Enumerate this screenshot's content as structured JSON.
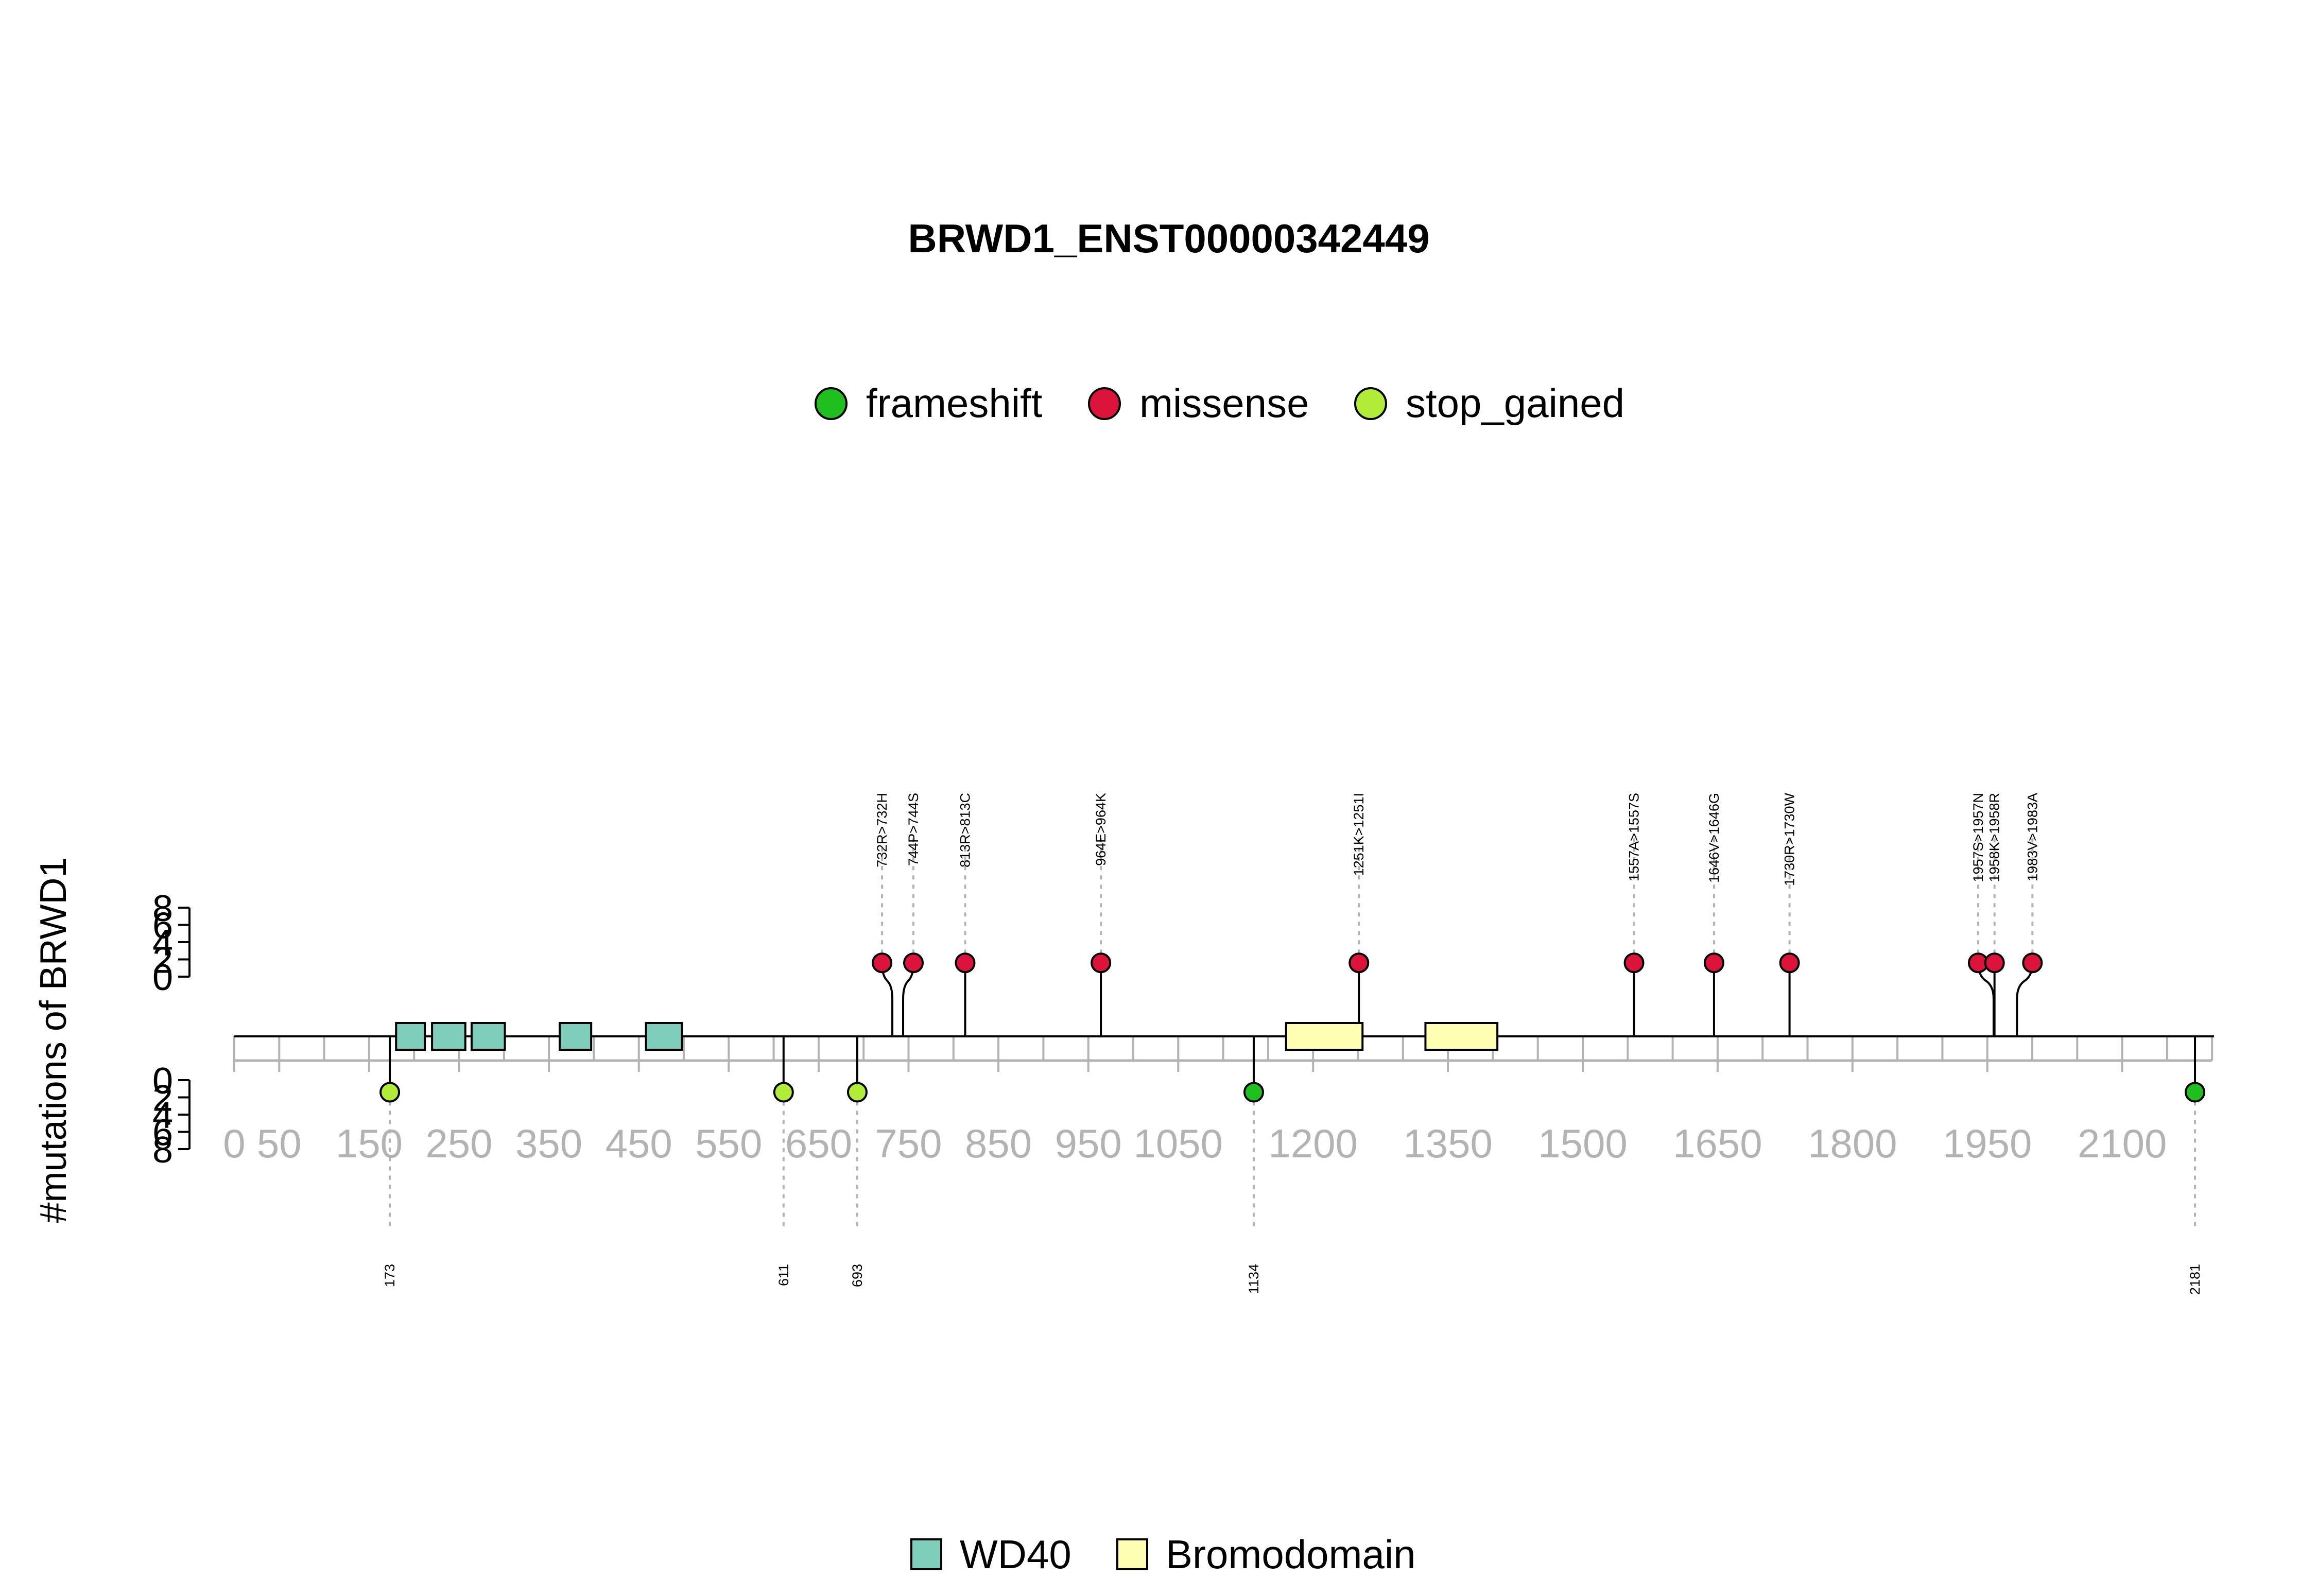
{
  "chart_data": {
    "type": "lollipop",
    "title": "BRWD1_ENST00000342449",
    "ylabel": "#mutations of BRWD1",
    "xlim": [
      0,
      2200
    ],
    "x_ticks": [
      0,
      50,
      150,
      250,
      350,
      450,
      550,
      650,
      750,
      850,
      950,
      1050,
      1200,
      1350,
      1500,
      1650,
      1800,
      1950,
      2100
    ],
    "y_ticks": [
      0,
      2,
      4,
      6,
      8
    ],
    "mutation_legend": [
      {
        "name": "frameshift",
        "color": "#1fbf1f"
      },
      {
        "name": "missense",
        "color": "#dc143c"
      },
      {
        "name": "stop_gained",
        "color": "#b3eb39"
      }
    ],
    "domain_legend": [
      {
        "name": "WD40",
        "color": "#7fcdbb"
      },
      {
        "name": "Bromodomain",
        "color": "#ffffb3"
      }
    ],
    "domains": [
      {
        "name": "WD40",
        "start": 180,
        "end": 212
      },
      {
        "name": "WD40",
        "start": 220,
        "end": 257
      },
      {
        "name": "WD40",
        "start": 264,
        "end": 301
      },
      {
        "name": "WD40",
        "start": 362,
        "end": 397
      },
      {
        "name": "WD40",
        "start": 458,
        "end": 498
      },
      {
        "name": "Bromodomain",
        "start": 1170,
        "end": 1255
      },
      {
        "name": "Bromodomain",
        "start": 1325,
        "end": 1405
      }
    ],
    "upper_mutations": [
      {
        "label": "732R>732H",
        "position": 732,
        "count": 1,
        "type": "missense"
      },
      {
        "label": "744P>744S",
        "position": 744,
        "count": 1,
        "type": "missense"
      },
      {
        "label": "813R>813C",
        "position": 813,
        "count": 1,
        "type": "missense"
      },
      {
        "label": "964E>964K",
        "position": 964,
        "count": 1,
        "type": "missense"
      },
      {
        "label": "1251K>1251I",
        "position": 1251,
        "count": 1,
        "type": "missense"
      },
      {
        "label": "1557A>1557S",
        "position": 1557,
        "count": 1,
        "type": "missense"
      },
      {
        "label": "1646V>1646G",
        "position": 1646,
        "count": 1,
        "type": "missense"
      },
      {
        "label": "1730R>1730W",
        "position": 1730,
        "count": 1,
        "type": "missense"
      },
      {
        "label": "1957S>1957N",
        "position": 1957,
        "count": 1,
        "type": "missense"
      },
      {
        "label": "1958K>1958R",
        "position": 1958,
        "count": 1,
        "type": "missense"
      },
      {
        "label": "1983V>1983A",
        "position": 1983,
        "count": 1,
        "type": "missense"
      }
    ],
    "lower_mutations": [
      {
        "label": "173",
        "position": 173,
        "count": 1,
        "type": "stop_gained"
      },
      {
        "label": "611",
        "position": 611,
        "count": 1,
        "type": "stop_gained"
      },
      {
        "label": "693",
        "position": 693,
        "count": 1,
        "type": "stop_gained"
      },
      {
        "label": "1134",
        "position": 1134,
        "count": 1,
        "type": "frameshift"
      },
      {
        "label": "2181",
        "position": 2181,
        "count": 1,
        "type": "frameshift"
      }
    ]
  }
}
